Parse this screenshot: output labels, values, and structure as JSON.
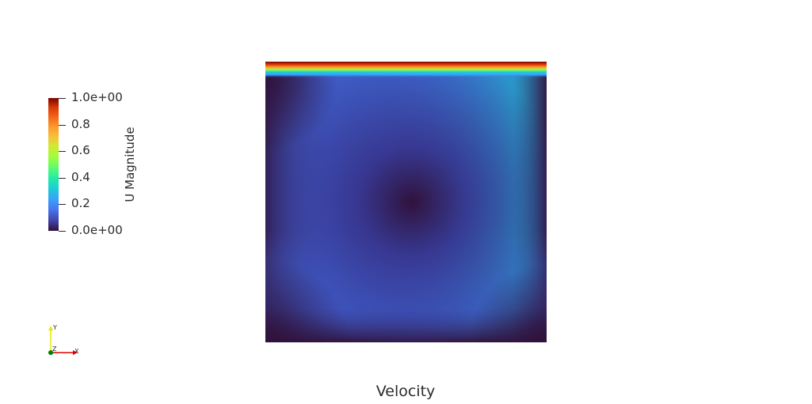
{
  "chart_data": {
    "type": "heatmap",
    "title": "Velocity",
    "field": "U Magnitude",
    "colormap": "turbo",
    "range": [
      0.0,
      1.0
    ],
    "colorbar": {
      "title": "U Magnitude",
      "placement": "left",
      "ticks": [
        {
          "value": 1.0,
          "label": "1.0e+00"
        },
        {
          "value": 0.8,
          "label": "0.8"
        },
        {
          "value": 0.6,
          "label": "0.6"
        },
        {
          "value": 0.4,
          "label": "0.4"
        },
        {
          "value": 0.2,
          "label": "0.2"
        },
        {
          "value": 0.0,
          "label": "0.0e+00"
        }
      ]
    },
    "orientation_axes": {
      "labels": [
        "Y",
        "Z",
        "X"
      ],
      "colors": {
        "x": "#e00000",
        "y": "#e8e800",
        "z": "#008000"
      }
    }
  }
}
